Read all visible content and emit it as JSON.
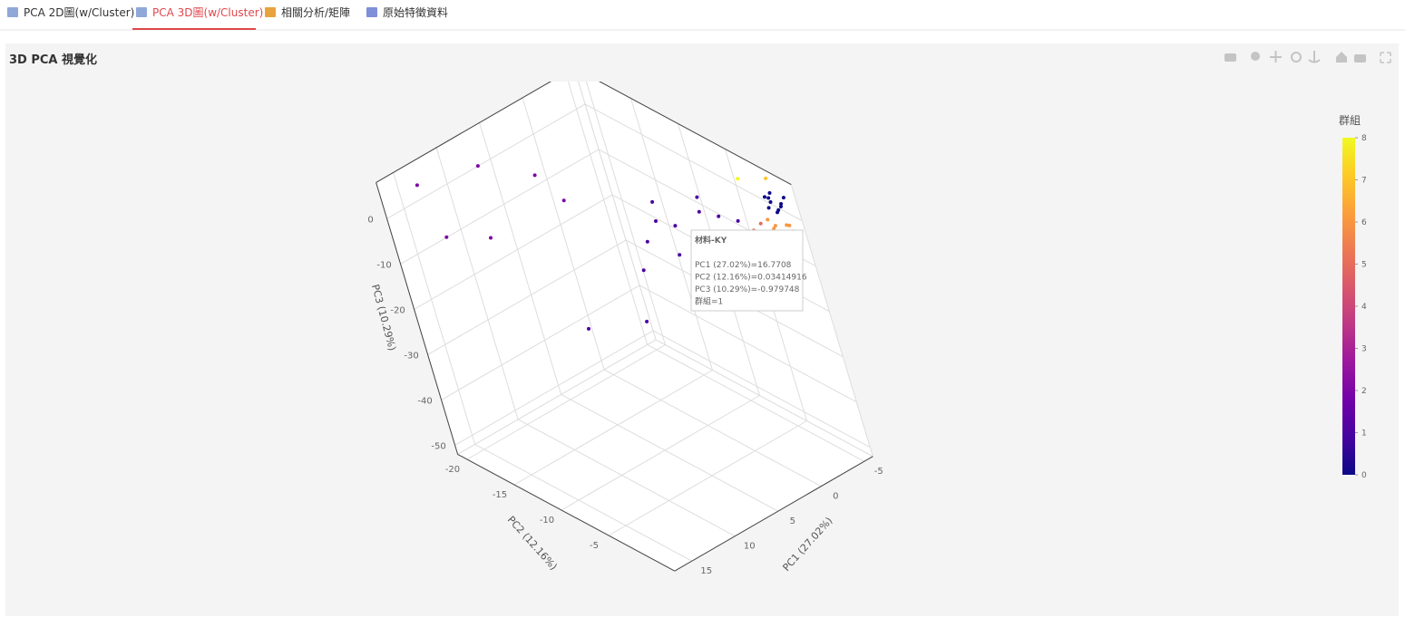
{
  "tabs": [
    "PCA 2D圖(w/Cluster)",
    "PCA 3D圖(w/Cluster)",
    "相關分析/矩陣",
    "原始特徵資料"
  ],
  "active_tab": 1,
  "chart_data": {
    "type": "scatter3d",
    "title": "3D PCA 視覺化",
    "x_label": "PC1 (27.02%)",
    "y_label": "PC2 (12.16%)",
    "z_label": "PC3 (10.29%)",
    "xlim": [
      -6,
      17
    ],
    "ylim": [
      -21,
      2
    ],
    "zlim": [
      -52,
      8
    ],
    "xticks": [
      -5,
      0,
      5,
      10,
      15
    ],
    "yticks": [
      -20,
      -15,
      -10,
      -5
    ],
    "zticks": [
      0,
      -10,
      -20,
      -30,
      -40,
      -50
    ],
    "grid": true,
    "colorbar_title": "群組",
    "clim": [
      0,
      8
    ],
    "cticks": [
      0,
      1,
      2,
      3,
      4,
      5,
      6,
      7,
      8
    ],
    "colorscale": [
      "#0d0887",
      "#46039f",
      "#7201a8",
      "#9c179e",
      "#bd3786",
      "#d8576b",
      "#ed7953",
      "#fb9f3a",
      "#fdca26",
      "#f0f921"
    ],
    "x": [
      -5,
      -5.5,
      -4.8,
      -5.2,
      -4.5,
      -5.8,
      -4.9,
      -5.3,
      -4.6,
      -5.1,
      -4,
      -3.5,
      -3,
      -4.5,
      -2.5,
      -3.8,
      -5,
      -4.2,
      -3.2,
      -2,
      -5.5,
      -4.8,
      -3.6,
      -2.8,
      -1.5,
      -3,
      -2.5,
      -6,
      -1,
      0,
      2,
      1,
      3,
      -2,
      4,
      6,
      2,
      16.77,
      10,
      8,
      -1,
      13.8,
      8,
      12,
      5,
      14,
      6,
      -4
    ],
    "y": [
      0,
      0.5,
      -0.3,
      1,
      0.2,
      0.8,
      0.6,
      -0.5,
      1.2,
      0.1,
      1,
      1.5,
      2,
      1.8,
      1,
      0.5,
      1.5,
      2,
      0.8,
      1.5,
      1.9,
      2,
      1.2,
      1.8,
      0.5,
      0.5,
      0,
      -1,
      -2,
      -3,
      -4,
      -1,
      -5,
      -1,
      -2,
      -3,
      -6,
      0.034,
      -1,
      -2,
      -4,
      -20,
      -19,
      -15,
      -16,
      -18,
      -12,
      -2
    ],
    "z": [
      3,
      2,
      4,
      3.5,
      2.5,
      4,
      1.5,
      3,
      3,
      5,
      0,
      -1,
      -2,
      0.5,
      -1.5,
      1,
      -0.5,
      -2.5,
      -0.8,
      -3,
      -3,
      -1,
      0,
      -2,
      -2,
      1,
      -0.5,
      6,
      2,
      3,
      1,
      0,
      2,
      1,
      -1,
      3,
      4,
      -0.98,
      -8,
      0,
      4,
      5,
      4,
      -3,
      2,
      -4,
      2,
      7
    ],
    "groups": [
      0,
      0,
      0,
      0,
      0,
      0,
      0,
      0,
      0,
      0,
      6,
      6,
      6,
      6,
      6,
      6,
      6,
      6,
      6,
      6,
      6,
      6,
      6,
      6,
      6,
      5,
      5,
      7,
      1,
      1,
      1,
      1,
      1,
      1,
      1,
      1,
      1,
      1,
      1,
      1,
      1,
      2,
      2,
      2,
      2,
      2,
      2,
      8
    ],
    "hover": {
      "title": "材料-KY",
      "lines": [
        "PC1 (27.02%)=16.7708",
        "PC2 (12.16%)=0.03414916",
        "PC3 (10.29%)=-0.979748",
        "群組=1"
      ]
    }
  }
}
